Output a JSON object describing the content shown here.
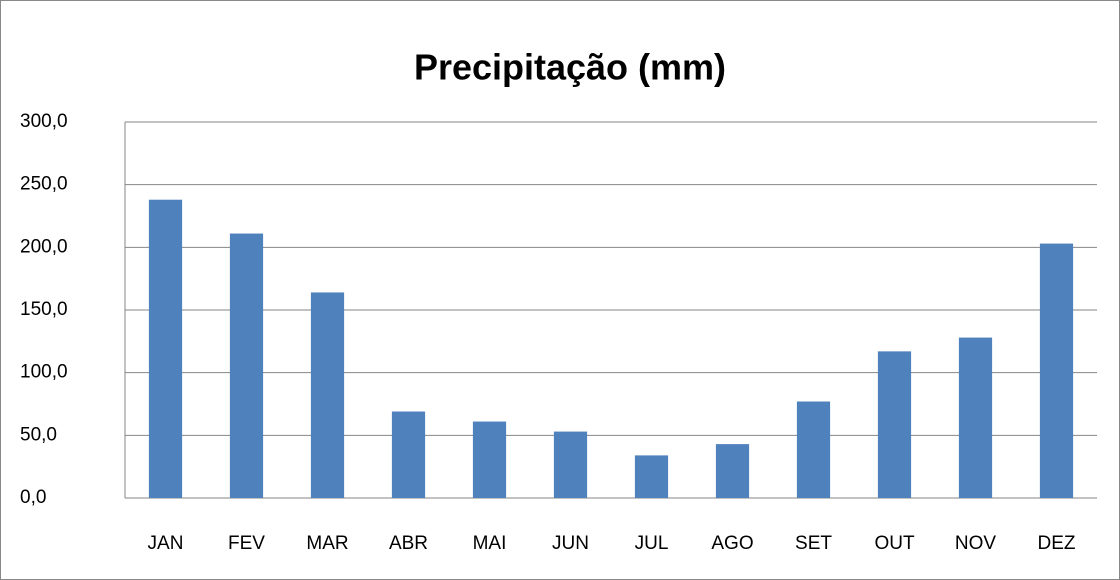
{
  "chart_data": {
    "type": "bar",
    "title": "Precipitação (mm)",
    "categories": [
      "JAN",
      "FEV",
      "MAR",
      "ABR",
      "MAI",
      "JUN",
      "JUL",
      "AGO",
      "SET",
      "OUT",
      "NOV",
      "DEZ"
    ],
    "values": [
      238,
      211,
      164,
      69,
      61,
      53,
      34,
      43,
      77,
      117,
      128,
      203
    ],
    "color": "#4f81bd",
    "ylim": [
      0,
      300
    ],
    "yticks": [
      {
        "value": 0,
        "label": "0,0"
      },
      {
        "value": 50,
        "label": "50,0"
      },
      {
        "value": 100,
        "label": "100,0"
      },
      {
        "value": 150,
        "label": "150,0"
      },
      {
        "value": 200,
        "label": "200,0"
      },
      {
        "value": 250,
        "label": "250,0"
      },
      {
        "value": 300,
        "label": "300,0"
      }
    ],
    "grid": true
  }
}
